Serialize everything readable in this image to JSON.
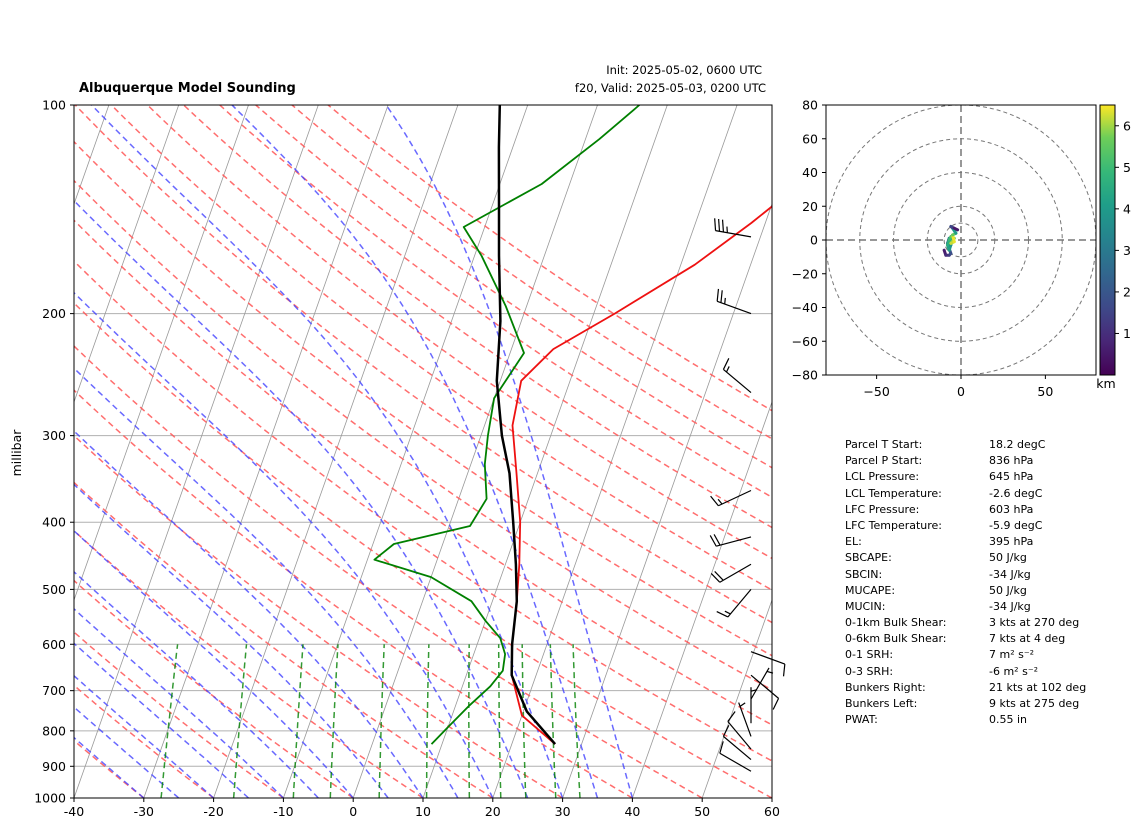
{
  "title": "Albuquerque Model Sounding",
  "init": "Init: 2025-05-02, 0600 UTC",
  "valid": "f20, Valid: 2025-05-03, 0200 UTC",
  "colors": {
    "temperature": "#ee1111",
    "dewpoint": "#008000",
    "parcel": "#000000",
    "dry_adiabat": "#ff5555",
    "moist_adiabat": "#4444ff",
    "mixing_ratio": "#008000",
    "isotherm": "#999999",
    "hodo_ring": "#777777"
  },
  "chart_data": [
    {
      "type": "line",
      "name": "skewt",
      "ylabel": "millibar",
      "y_scale": "log",
      "xlim": [
        -40,
        60
      ],
      "ylim": [
        1000,
        100
      ],
      "x_ticks": [
        -40,
        -30,
        -20,
        -10,
        0,
        10,
        20,
        30,
        40,
        50,
        60
      ],
      "y_ticks": [
        1000,
        900,
        800,
        700,
        600,
        500,
        400,
        300,
        200,
        100
      ],
      "series": [
        {
          "key": "temperature",
          "points": [
            [
              26.2,
              836
            ],
            [
              20,
              760
            ],
            [
              16.5,
              665
            ],
            [
              15,
              600
            ],
            [
              13.5,
              520
            ],
            [
              12,
              460
            ],
            [
              10,
              400
            ],
            [
              7,
              340
            ],
            [
              4,
              290
            ],
            [
              3,
              250
            ],
            [
              6,
              225
            ],
            [
              13,
              200
            ],
            [
              22,
              170
            ],
            [
              28,
              148
            ],
            [
              33,
              130
            ],
            [
              37,
              113
            ],
            [
              40,
              100
            ]
          ]
        },
        {
          "key": "dewpoint",
          "points": [
            [
              8.5,
              836
            ],
            [
              10,
              790
            ],
            [
              12,
              735
            ],
            [
              14,
              690
            ],
            [
              15,
              655
            ],
            [
              14.5,
              620
            ],
            [
              13,
              588
            ],
            [
              10,
              555
            ],
            [
              7,
              520
            ],
            [
              0,
              480
            ],
            [
              -9,
              453
            ],
            [
              -7,
              430
            ],
            [
              3,
              405
            ],
            [
              4,
              370
            ],
            [
              2,
              330
            ],
            [
              1,
              300
            ],
            [
              0,
              265
            ],
            [
              2,
              228
            ],
            [
              -3,
              195
            ],
            [
              -9,
              165
            ],
            [
              -13,
              150
            ],
            [
              -4,
              130
            ],
            [
              2,
              112
            ],
            [
              6,
              100
            ]
          ]
        },
        {
          "key": "parcel",
          "points": [
            [
              26.2,
              836
            ],
            [
              20.5,
              750
            ],
            [
              16.5,
              665
            ],
            [
              15,
              600
            ],
            [
              13.5,
              520
            ],
            [
              11.5,
              460
            ],
            [
              9,
              400
            ],
            [
              6,
              340
            ],
            [
              3,
              300
            ],
            [
              -0.5,
              250
            ],
            [
              -3,
              205
            ],
            [
              -6.5,
              165
            ],
            [
              -9,
              140
            ],
            [
              -12,
              115
            ],
            [
              -14,
              100
            ]
          ]
        }
      ],
      "barbs": [
        {
          "p": 915,
          "speed": 10,
          "dir": 300
        },
        {
          "p": 880,
          "speed": 10,
          "dir": 310
        },
        {
          "p": 850,
          "speed": 10,
          "dir": 320
        },
        {
          "p": 815,
          "speed": 5,
          "dir": 340
        },
        {
          "p": 780,
          "speed": 5,
          "dir": 0
        },
        {
          "p": 720,
          "speed": 5,
          "dir": 30
        },
        {
          "p": 665,
          "speed": 10,
          "dir": 130
        },
        {
          "p": 615,
          "speed": 10,
          "dir": 110
        },
        {
          "p": 500,
          "speed": 15,
          "dir": 220
        },
        {
          "p": 460,
          "speed": 20,
          "dir": 240
        },
        {
          "p": 420,
          "speed": 20,
          "dir": 255
        },
        {
          "p": 360,
          "speed": 15,
          "dir": 245
        },
        {
          "p": 260,
          "speed": 15,
          "dir": 310
        },
        {
          "p": 200,
          "speed": 25,
          "dir": 290
        },
        {
          "p": 155,
          "speed": 35,
          "dir": 280
        }
      ]
    },
    {
      "type": "line",
      "name": "hodograph",
      "xlim": [
        -80,
        80
      ],
      "ylim": [
        -80,
        80
      ],
      "x_ticks": [
        -50,
        0,
        50
      ],
      "y_ticks": [
        -80,
        -60,
        -40,
        -20,
        0,
        20,
        40,
        60,
        80
      ],
      "rings": [
        10,
        20,
        40,
        60,
        80
      ],
      "colorbar": {
        "label": "km",
        "ticks": [
          1,
          2,
          3,
          4,
          5,
          6
        ],
        "range": [
          0,
          6.5
        ]
      },
      "points": [
        [
          -10,
          -6,
          0.2
        ],
        [
          -9,
          -9,
          0.6
        ],
        [
          -7,
          -9,
          1.0
        ],
        [
          -6,
          -8,
          1.4
        ],
        [
          -7,
          -5,
          1.8
        ],
        [
          -8,
          -2,
          2.2
        ],
        [
          -7,
          1,
          2.6
        ],
        [
          -5,
          2,
          3.0
        ],
        [
          -6,
          -3,
          3.4
        ],
        [
          -7,
          -6,
          3.8
        ],
        [
          -8,
          -3,
          4.2
        ],
        [
          -7,
          0,
          4.6
        ],
        [
          -6,
          2,
          5.0
        ],
        [
          -4,
          1,
          5.4
        ],
        [
          -6,
          -2,
          5.8
        ],
        [
          -4,
          -1,
          6.2
        ],
        [
          -5,
          3,
          6.4
        ],
        [
          -3,
          4,
          5.6
        ],
        [
          -5,
          7,
          4.0
        ],
        [
          -6,
          8,
          2.8
        ],
        [
          -4,
          7,
          1.5
        ],
        [
          -2,
          6,
          0.5
        ]
      ]
    }
  ],
  "params": [
    {
      "label": "Parcel T Start:",
      "value": "18.2 degC"
    },
    {
      "label": "Parcel P Start:",
      "value": "836 hPa"
    },
    {
      "label": "LCL Pressure:",
      "value": "645 hPa"
    },
    {
      "label": "LCL Temperature:",
      "value": "-2.6 degC"
    },
    {
      "label": "LFC Pressure:",
      "value": "603 hPa"
    },
    {
      "label": "LFC Temperature:",
      "value": "-5.9 degC"
    },
    {
      "label": "EL:",
      "value": "395 hPa"
    },
    {
      "label": "SBCAPE:",
      "value": "50 J/kg"
    },
    {
      "label": "SBCIN:",
      "value": "-34 J/kg"
    },
    {
      "label": "MUCAPE:",
      "value": "50 J/kg"
    },
    {
      "label": "MUCIN:",
      "value": "-34 J/kg"
    },
    {
      "label": "0-1km Bulk Shear:",
      "value": "3 kts at 270 deg"
    },
    {
      "label": "0-6km Bulk Shear:",
      "value": "7 kts at 4 deg"
    },
    {
      "label": "0-1 SRH:",
      "value": "7 m² s⁻²"
    },
    {
      "label": "0-3 SRH:",
      "value": "-6 m² s⁻²"
    },
    {
      "label": "Bunkers Right:",
      "value": "21 kts at 102 deg"
    },
    {
      "label": "Bunkers Left:",
      "value": "9 kts at 275 deg"
    },
    {
      "label": "PWAT:",
      "value": "0.55 in"
    }
  ]
}
